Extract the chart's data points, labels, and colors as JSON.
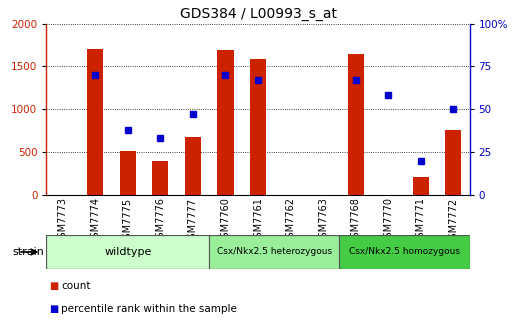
{
  "title": "GDS384 / L00993_s_at",
  "samples": [
    "GSM7773",
    "GSM7774",
    "GSM7775",
    "GSM7776",
    "GSM7777",
    "GSM7760",
    "GSM7761",
    "GSM7762",
    "GSM7763",
    "GSM7768",
    "GSM7770",
    "GSM7771",
    "GSM7772"
  ],
  "counts": [
    0,
    1700,
    510,
    390,
    680,
    1690,
    1590,
    0,
    0,
    1650,
    0,
    210,
    760
  ],
  "percentiles": [
    null,
    70,
    38,
    33,
    47,
    70,
    67,
    null,
    null,
    67,
    58,
    20,
    50
  ],
  "groups": [
    {
      "label": "wildtype",
      "start": 0,
      "end": 5,
      "color": "#ccffcc"
    },
    {
      "label": "Csx/Nkx2.5 heterozygous",
      "start": 5,
      "end": 9,
      "color": "#99ee99"
    },
    {
      "label": "Csx/Nkx2.5 homozygous",
      "start": 9,
      "end": 13,
      "color": "#44cc44"
    }
  ],
  "bar_color": "#cc2200",
  "dot_color": "#0000cc",
  "left_ylim": [
    0,
    2000
  ],
  "right_ylim": [
    0,
    100
  ],
  "left_yticks": [
    0,
    500,
    1000,
    1500,
    2000
  ],
  "right_yticks": [
    0,
    25,
    50,
    75,
    100
  ],
  "right_yticklabels": [
    "0",
    "25",
    "50",
    "75",
    "100%"
  ],
  "left_ylabel_color": "#cc2200",
  "right_ylabel_color": "#0000cc",
  "grid_color": "#000000",
  "legend_items": [
    {
      "label": "count",
      "color": "#cc2200"
    },
    {
      "label": "percentile rank within the sample",
      "color": "#0000cc"
    }
  ],
  "group_border_color": "#555555",
  "strain_label": "strain",
  "bar_width": 0.5
}
